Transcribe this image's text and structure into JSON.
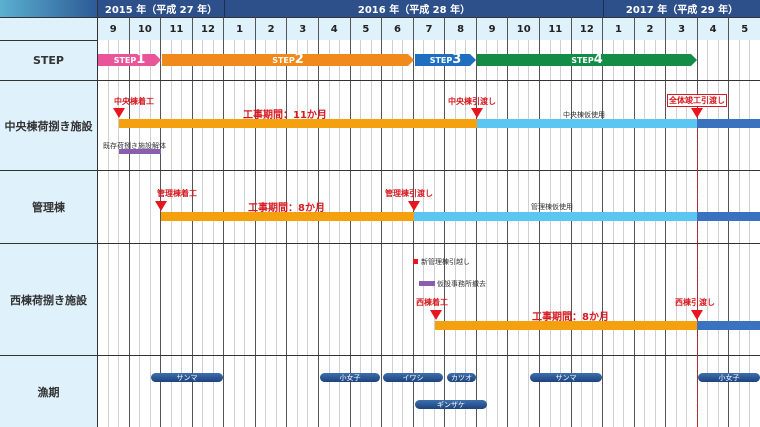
{
  "chart_data": {
    "type": "gantt",
    "title": "",
    "timeline": {
      "years": [
        {
          "label": "2015 年（平成 27 年）",
          "months": [
            9,
            10,
            11,
            12
          ]
        },
        {
          "label": "2016 年（平成 28 年）",
          "months": [
            1,
            2,
            3,
            4,
            5,
            6,
            7,
            8,
            9,
            10,
            11,
            12
          ]
        },
        {
          "label": "2017 年（平成 29 年）",
          "months": [
            1,
            2,
            3,
            4,
            5
          ]
        }
      ]
    },
    "rows": [
      {
        "label": "STEP",
        "tasks": [
          {
            "name": "STEP1",
            "start": "2015-09",
            "end": "2015-10",
            "color": "#e8559a"
          },
          {
            "name": "STEP2",
            "start": "2015-11",
            "end": "2016-06",
            "color": "#f08a1c"
          },
          {
            "name": "STEP3",
            "start": "2016-07",
            "end": "2016-08",
            "color": "#1e6fbf"
          },
          {
            "name": "STEP4",
            "start": "2016-09",
            "end": "2017-03",
            "color": "#128c46"
          }
        ]
      },
      {
        "label": "中央棟荷捌き施設",
        "tasks": [
          {
            "name": "工事期間：11か月",
            "start": "2015-09 mid",
            "end": "2016-08",
            "color": "#f5a00f"
          },
          {
            "name": "中央棟仮使用",
            "start": "2016-09",
            "end": "2017-03",
            "color": "#5bc6f2"
          },
          {
            "name": "(after)",
            "start": "2017-04",
            "end": "2017-05",
            "color": "#3a72bf"
          },
          {
            "name": "既存荷捌き施設解体",
            "start": "2015-09 mid",
            "end": "2015-10",
            "color": "#8a5db0"
          }
        ],
        "milestones": [
          "中央棟着工",
          "中央棟引渡し",
          "全体竣工引渡し"
        ]
      },
      {
        "label": "管理棟",
        "tasks": [
          {
            "name": "工事期間：8か月",
            "start": "2015-11",
            "end": "2016-06",
            "color": "#f5a00f"
          },
          {
            "name": "管理棟仮使用",
            "start": "2016-07",
            "end": "2017-03",
            "color": "#5bc6f2"
          },
          {
            "name": "(after)",
            "start": "2017-04",
            "end": "2017-05",
            "color": "#3a72bf"
          }
        ],
        "milestones": [
          "管理棟着工",
          "管理棟引渡し"
        ]
      },
      {
        "label": "西棟荷捌き施設",
        "tasks": [
          {
            "name": "工事期間：8か月",
            "start": "2016-07 mid",
            "end": "2017-03",
            "color": "#f5a00f"
          },
          {
            "name": "(after)",
            "start": "2017-04",
            "end": "2017-05",
            "color": "#3a72bf"
          }
        ],
        "milestones": [
          "新管理棟引越し",
          "仮設事務所撤去",
          "西棟着工",
          "西棟引渡し"
        ]
      },
      {
        "label": "漁期",
        "tasks": [
          {
            "name": "サンマ",
            "start": "2015-10 mid",
            "end": "2015-12"
          },
          {
            "name": "小女子",
            "start": "2016-04",
            "end": "2016-05"
          },
          {
            "name": "イワシ",
            "start": "2016-06",
            "end": "2016-07 mid"
          },
          {
            "name": "カツオ",
            "start": "2016-07 mid",
            "end": "2016-08"
          },
          {
            "name": "ギンザケ",
            "start": "2016-07",
            "end": "2016-09"
          },
          {
            "name": "サンマ",
            "start": "2016-10",
            "end": "2016-12"
          },
          {
            "name": "小女子",
            "start": "2017-04",
            "end": "2017-05"
          }
        ]
      }
    ]
  },
  "header": {
    "years": [
      "2015 年（平成 27 年）",
      "2016 年（平成 28 年）",
      "2017 年（平成 29 年）"
    ],
    "months": [
      "9",
      "10",
      "11",
      "12",
      "1",
      "2",
      "3",
      "4",
      "5",
      "6",
      "7",
      "8",
      "9",
      "10",
      "11",
      "12",
      "1",
      "2",
      "3",
      "4",
      "5"
    ]
  },
  "rows": {
    "step": "STEP",
    "chuo": "中央棟荷捌き施設",
    "kanri": "管理棟",
    "nishi": "西棟荷捌き施設",
    "gyoki": "漁期"
  },
  "steps": {
    "s1": "1",
    "s2": "2",
    "s3": "3",
    "s4": "4",
    "prefix": "STEP"
  },
  "chuo": {
    "start": "中央棟着工",
    "period": "工事期間：11か月",
    "handover": "中央棟引渡し",
    "temp_use": "中央棟仮使用",
    "complete": "全体竣工引渡し",
    "demolish": "既存荷捌き施設解体"
  },
  "kanri": {
    "start": "管理棟着工",
    "period": "工事期間：8か月",
    "handover": "管理棟引渡し",
    "temp_use": "管理棟仮使用"
  },
  "nishi": {
    "move": "新管理棟引越し",
    "remove": "仮設事務所撤去",
    "start": "西棟着工",
    "period": "工事期間：8か月",
    "handover": "西棟引渡し"
  },
  "fish": {
    "f1": "サンマ",
    "f2": "小女子",
    "f3": "イワシ",
    "f4": "カツオ",
    "f5": "ギンザケ",
    "f6": "サンマ",
    "f7": "小女子"
  }
}
